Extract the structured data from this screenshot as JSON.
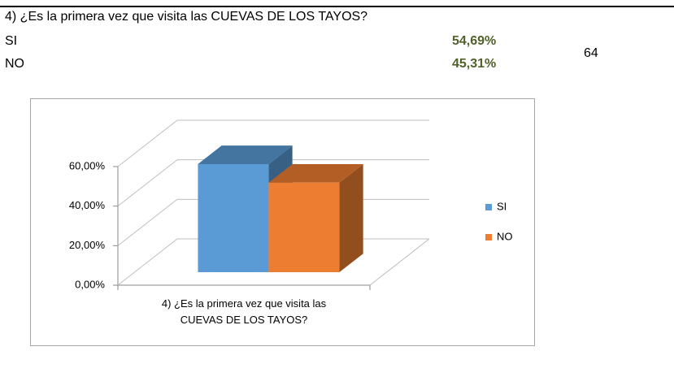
{
  "sheet": {
    "question": "4) ¿Es la primera vez que visita las CUEVAS DE LOS TAYOS?",
    "rows": [
      [
        "SI",
        "54,69%"
      ],
      [
        "NO",
        "45,31%"
      ]
    ],
    "note": "64"
  },
  "chart_data": {
    "type": "bar3d",
    "categories": [
      "4) ¿Es la primera vez que visita las CUEVAS DE LOS TAYOS?"
    ],
    "series": [
      {
        "name": "SI",
        "color": "#5b9bd5",
        "values": [
          54.69
        ]
      },
      {
        "name": "NO",
        "color": "#ed7d31",
        "values": [
          45.31
        ]
      }
    ],
    "ylim": [
      0,
      60
    ],
    "yticks": [
      {
        "value": 0,
        "label": "0,00%"
      },
      {
        "value": 20,
        "label": "20,00%"
      },
      {
        "value": 40,
        "label": "40,00%"
      },
      {
        "value": 60,
        "label": "60,00%"
      }
    ],
    "grid": true,
    "legend": "right"
  }
}
